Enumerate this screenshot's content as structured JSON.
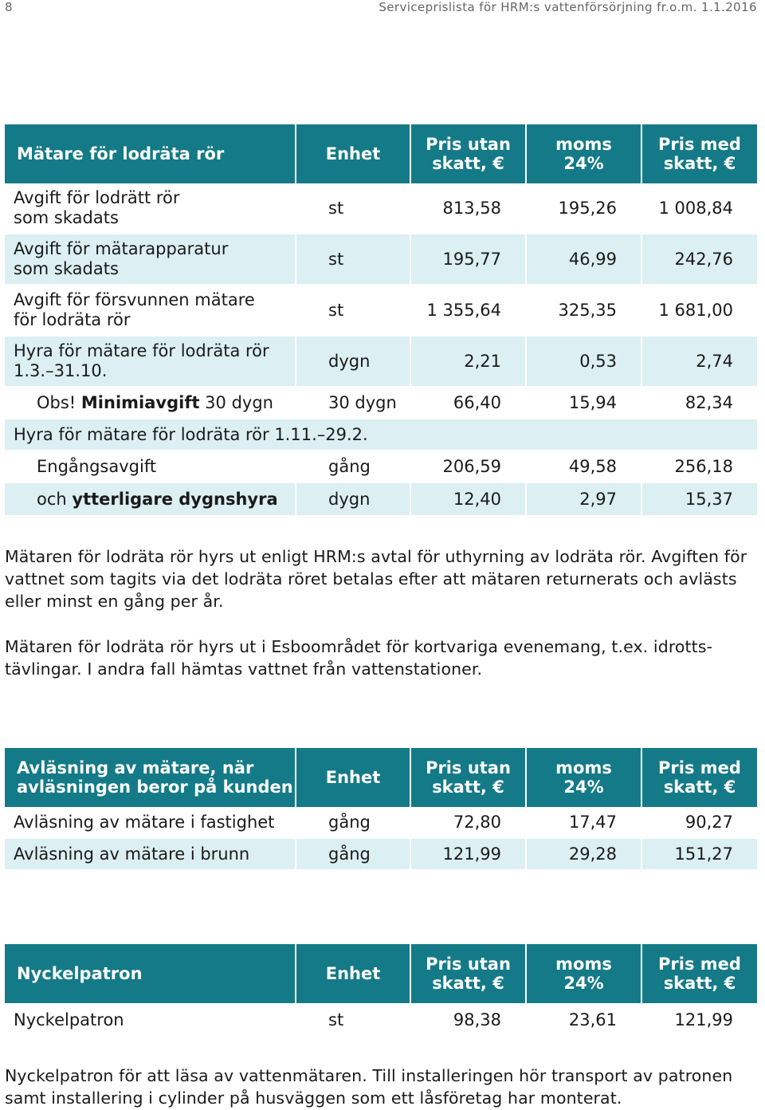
{
  "header": {
    "page_number": "8",
    "document_title": "Serviceprislista för HRM:s vattenförsörjning fr.o.m. 1.1.2016"
  },
  "colors": {
    "header_bg": "#147a87",
    "row_shade": "#dceff2"
  },
  "table1": {
    "headers": [
      "Mätare för lodräta rör",
      "Enhet",
      "Pris utan",
      "skatt, €",
      "moms",
      "24%",
      "Pris med",
      "skatt, €"
    ],
    "rows": [
      {
        "desc1": "Avgift för lodrätt rör",
        "desc2": "som skadats",
        "unit": "st",
        "price_ex": "813,58",
        "vat": "195,26",
        "price_inc": "1 008,84"
      },
      {
        "desc1": "Avgift för mätarapparatur",
        "desc2": "som skadats",
        "unit": "st",
        "price_ex": "195,77",
        "vat": "46,99",
        "price_inc": "242,76"
      },
      {
        "desc1": "Avgift för försvunnen mätare",
        "desc2": "för lodräta rör",
        "unit": "st",
        "price_ex": "1 355,64",
        "vat": "325,35",
        "price_inc": "1 681,00"
      },
      {
        "desc1": "Hyra för mätare för lodräta rör",
        "desc2": "1.3.–31.10.",
        "unit": "dygn",
        "price_ex": "2,21",
        "vat": "0,53",
        "price_inc": "2,74"
      }
    ],
    "obs_row": {
      "prefix": "Obs! ",
      "bold": "Minimiavgift",
      "suffix": " 30 dygn",
      "unit": "30 dygn",
      "price_ex": "66,40",
      "vat": "15,94",
      "price_inc": "82,34"
    },
    "section_label": "Hyra för mätare för lodräta rör 1.11.–29.2.",
    "once_row": {
      "desc": "Engångsavgift",
      "unit": "gång",
      "price_ex": "206,59",
      "vat": "49,58",
      "price_inc": "256,18"
    },
    "extra_row": {
      "prefix": "och ",
      "bold": "ytterligare dygnshyra",
      "unit": "dygn",
      "price_ex": "12,40",
      "vat": "2,97",
      "price_inc": "15,37"
    }
  },
  "paragraph1": "Mätaren för lodräta rör hyrs ut enligt HRM:s avtal för uthyrning av lodräta rör. Avgiften för vattnet som tagits via det lodräta röret betalas efter att mätaren returnerats och avlästs eller minst en gång per år.",
  "paragraph2_line1": "Mätaren för lodräta rör hyrs ut i Esboområdet för kortvariga evenemang, t.ex. idrotts-",
  "paragraph2_line2": "tävlingar. I andra fall hämtas vattnet från vattenstationer.",
  "table2": {
    "headers": [
      "Avläsning av mätare, när",
      "avläsningen beror på kunden",
      "Enhet",
      "Pris utan",
      "skatt, €",
      "moms",
      "24%",
      "Pris med",
      "skatt, €"
    ],
    "rows": [
      {
        "desc": "Avläsning av mätare i fastighet",
        "unit": "gång",
        "price_ex": "72,80",
        "vat": "17,47",
        "price_inc": "90,27"
      },
      {
        "desc": "Avläsning av mätare i brunn",
        "unit": "gång",
        "price_ex": "121,99",
        "vat": "29,28",
        "price_inc": "151,27"
      }
    ]
  },
  "table3": {
    "headers": [
      "Nyckelpatron",
      "Enhet",
      "Pris utan",
      "skatt, €",
      "moms",
      "24%",
      "Pris med",
      "skatt, €"
    ],
    "rows": [
      {
        "desc": "Nyckelpatron",
        "unit": "st",
        "price_ex": "98,38",
        "vat": "23,61",
        "price_inc": "121,99"
      }
    ]
  },
  "paragraph3_line1": "Nyckelpatron för att läsa av vattenmätaren. Till installeringen hör transport av patronen",
  "paragraph3_line2": "samt installering i cylinder på husväggen som ett låsföretag har monterat."
}
